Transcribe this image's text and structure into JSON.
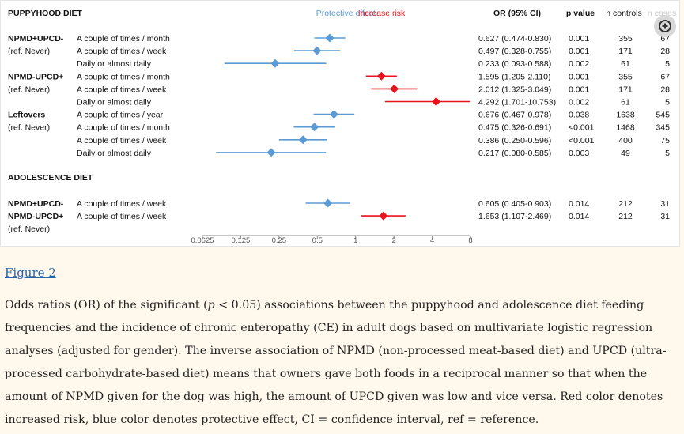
{
  "figure": {
    "link_text": "Figure 2",
    "zoom_icon": "magnify-plus-icon"
  },
  "caption": {
    "part1": "Odds ratios (OR) of the significant (",
    "p_symbol": "p",
    "part2": " < 0.05) associations between the puppyhood and adolescence diet feeding frequencies and the incidence of chronic enteropathy (CE) in adult dogs based on multivariate logistic regression analyses (adjusted for gender). The inverse association of NPMD (non-processed meat-based diet) and UPCD (ultra-processed carbohydrate-based diet) means that owners gave both foods in a reciprocal manner so that when the amount of NPMD given for the dog was high, the amount of UPCD given was low and vice versa. Red color denotes increased risk, blue color denotes protective effect, CI = confidence interval, ref = reference."
  },
  "chart_data": {
    "type": "forest",
    "x_scale": "log2",
    "xlim": [
      0.0625,
      8
    ],
    "x_ticks": [
      "0.0625",
      "0.125",
      "0.25",
      "0.5",
      "1",
      "2",
      "4",
      "8"
    ],
    "legend": {
      "protective": "Protective effect",
      "increase": "Increase risk"
    },
    "colors": {
      "protective": "#5b9bd5",
      "increase": "#e8141b"
    },
    "columns": {
      "or": "OR (95% CI)",
      "p": "p value",
      "controls": "n controls",
      "cases": "n cases"
    },
    "sections": [
      {
        "title": "PUPPYHOOD DIET",
        "rows": [
          {
            "group": "NPMD+UPCD-",
            "ref": "(ref. Never)",
            "freq": "A couple of times / month",
            "or": 0.627,
            "lo": 0.474,
            "hi": 0.83,
            "or_text": "0.627 (0.474-0.830)",
            "p": "0.001",
            "controls": "355",
            "cases": "67",
            "effect": "protective"
          },
          {
            "group": "",
            "ref": "",
            "freq": "A couple of times / week",
            "or": 0.497,
            "lo": 0.328,
            "hi": 0.755,
            "or_text": "0.497 (0.328-0.755)",
            "p": "0.001",
            "controls": "171",
            "cases": "28",
            "effect": "protective"
          },
          {
            "group": "",
            "ref": "",
            "freq": "Daily or almost daily",
            "or": 0.233,
            "lo": 0.093,
            "hi": 0.588,
            "or_text": "0.233 (0.093-0.588)",
            "p": "0.002",
            "controls": "61",
            "cases": "5",
            "effect": "protective"
          },
          {
            "group": "NPMD-UPCD+",
            "ref": "(ref. Never)",
            "freq": "A couple of times / month",
            "or": 1.595,
            "lo": 1.205,
            "hi": 2.11,
            "or_text": "1.595 (1.205-2.110)",
            "p": "0.001",
            "controls": "355",
            "cases": "67",
            "effect": "increase"
          },
          {
            "group": "",
            "ref": "",
            "freq": "A couple of times / week",
            "or": 2.012,
            "lo": 1.325,
            "hi": 3.049,
            "or_text": "2.012 (1.325-3.049)",
            "p": "0.001",
            "controls": "171",
            "cases": "28",
            "effect": "increase"
          },
          {
            "group": "",
            "ref": "",
            "freq": "Daily or almost daily",
            "or": 4.292,
            "lo": 1.701,
            "hi": 10.753,
            "or_text": "4.292 (1.701-10.753)",
            "p": "0.002",
            "controls": "61",
            "cases": "5",
            "effect": "increase"
          },
          {
            "group": "Leftovers",
            "ref": "(ref. Never)",
            "freq": "A couple of times / year",
            "or": 0.676,
            "lo": 0.467,
            "hi": 0.978,
            "or_text": "0.676 (0.467-0.978)",
            "p": "0.038",
            "controls": "1638",
            "cases": "545",
            "effect": "protective"
          },
          {
            "group": "",
            "ref": "",
            "freq": "A couple of times / month",
            "or": 0.475,
            "lo": 0.326,
            "hi": 0.691,
            "or_text": "0.475 (0.326-0.691)",
            "p": "<0.001",
            "controls": "1468",
            "cases": "345",
            "effect": "protective"
          },
          {
            "group": "",
            "ref": "",
            "freq": "A couple of times / week",
            "or": 0.386,
            "lo": 0.25,
            "hi": 0.596,
            "or_text": "0.386 (0.250-0.596)",
            "p": "<0.001",
            "controls": "400",
            "cases": "75",
            "effect": "protective"
          },
          {
            "group": "",
            "ref": "",
            "freq": "Daily or almost daily",
            "or": 0.217,
            "lo": 0.08,
            "hi": 0.585,
            "or_text": "0.217 (0.080-0.585)",
            "p": "0.003",
            "controls": "49",
            "cases": "5",
            "effect": "protective"
          }
        ]
      },
      {
        "title": "ADOLESCENCE DIET",
        "rows": [
          {
            "group": "NPMD+UPCD-",
            "ref": "",
            "freq": "A couple of times / week",
            "or": 0.605,
            "lo": 0.405,
            "hi": 0.903,
            "or_text": "0.605 (0.405-0.903)",
            "p": "0.014",
            "controls": "212",
            "cases": "31",
            "effect": "protective"
          },
          {
            "group": "NPMD-UPCD+",
            "ref": "(ref. Never)",
            "freq": "A couple of times / week",
            "or": 1.653,
            "lo": 1.107,
            "hi": 2.469,
            "or_text": "1.653 (1.107-2.469)",
            "p": "0.014",
            "controls": "212",
            "cases": "31",
            "effect": "increase"
          }
        ]
      }
    ]
  }
}
